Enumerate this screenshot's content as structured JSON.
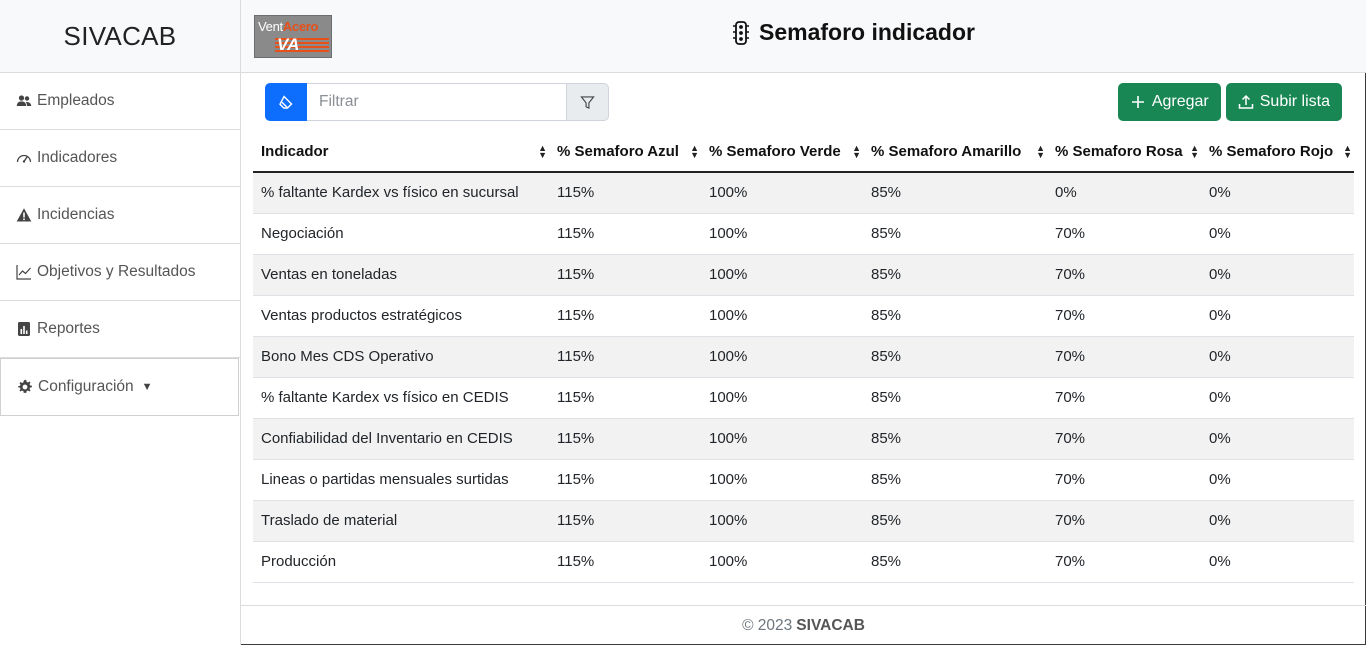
{
  "sidebar": {
    "brand": "SIVACAB",
    "items": [
      {
        "label": "Empleados",
        "icon": "users-icon"
      },
      {
        "label": "Indicadores",
        "icon": "speedometer-icon"
      },
      {
        "label": "Incidencias",
        "icon": "warning-icon"
      },
      {
        "label": "Objetivos y Resultados",
        "icon": "line-chart-icon"
      },
      {
        "label": "Reportes",
        "icon": "report-icon"
      },
      {
        "label": "Configuración",
        "icon": "gear-icon"
      }
    ]
  },
  "header": {
    "logo_text_1": "Vent",
    "logo_text_2": "Acero",
    "logo_mark": "VA",
    "title": "Semaforo indicador"
  },
  "toolbar": {
    "filter_placeholder": "Filtrar",
    "add_label": "Agregar",
    "upload_label": "Subir lista"
  },
  "table": {
    "columns": [
      "Indicador",
      "% Semaforo Azul",
      "% Semaforo Verde",
      "% Semaforo Amarillo",
      "% Semaforo Rosa",
      "% Semaforo Rojo"
    ],
    "rows": [
      [
        "% faltante Kardex vs físico en sucursal",
        "115%",
        "100%",
        "85%",
        "0%",
        "0%"
      ],
      [
        "Negociación",
        "115%",
        "100%",
        "85%",
        "70%",
        "0%"
      ],
      [
        "Ventas en toneladas",
        "115%",
        "100%",
        "85%",
        "70%",
        "0%"
      ],
      [
        "Ventas productos estratégicos",
        "115%",
        "100%",
        "85%",
        "70%",
        "0%"
      ],
      [
        "Bono Mes CDS Operativo",
        "115%",
        "100%",
        "85%",
        "70%",
        "0%"
      ],
      [
        "% faltante Kardex vs físico en CEDIS",
        "115%",
        "100%",
        "85%",
        "70%",
        "0%"
      ],
      [
        "Confiabilidad del Inventario en CEDIS",
        "115%",
        "100%",
        "85%",
        "70%",
        "0%"
      ],
      [
        "Lineas o partidas mensuales surtidas",
        "115%",
        "100%",
        "85%",
        "70%",
        "0%"
      ],
      [
        "Traslado de material",
        "115%",
        "100%",
        "85%",
        "70%",
        "0%"
      ],
      [
        "Producción",
        "115%",
        "100%",
        "85%",
        "70%",
        "0%"
      ]
    ]
  },
  "footer": {
    "copyright": "© 2023",
    "brand": "SIVACAB"
  },
  "colors": {
    "primary": "#0d6efd",
    "success": "#198754",
    "header_bg": "#f8f9fa",
    "stripe": "#f2f2f2",
    "logo_accent": "#e8501a"
  }
}
